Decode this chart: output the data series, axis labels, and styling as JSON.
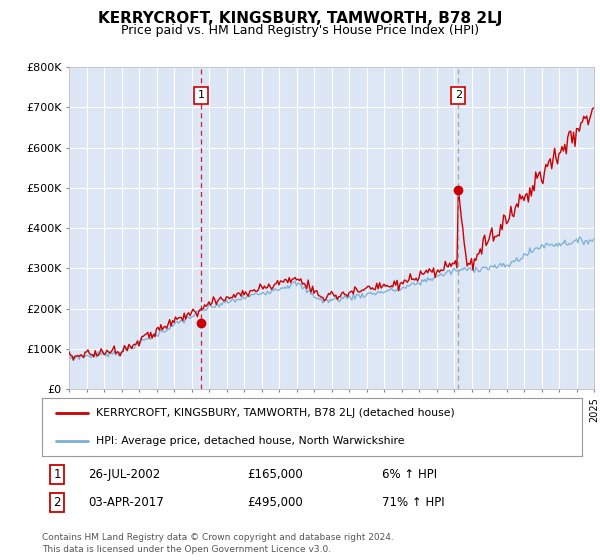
{
  "title": "KERRYCROFT, KINGSBURY, TAMWORTH, B78 2LJ",
  "subtitle": "Price paid vs. HM Land Registry's House Price Index (HPI)",
  "title_fontsize": 11,
  "subtitle_fontsize": 9,
  "bg_color": "#ffffff",
  "plot_bg_color": "#dce6f5",
  "legend_label_red": "KERRYCROFT, KINGSBURY, TAMWORTH, B78 2LJ (detached house)",
  "legend_label_blue": "HPI: Average price, detached house, North Warwickshire",
  "footer": "Contains HM Land Registry data © Crown copyright and database right 2024.\nThis data is licensed under the Open Government Licence v3.0.",
  "sale1_date": "26-JUL-2002",
  "sale1_price": "£165,000",
  "sale1_hpi": "6% ↑ HPI",
  "sale1_year": 2002.56,
  "sale2_date": "03-APR-2017",
  "sale2_price": "£495,000",
  "sale2_hpi": "71% ↑ HPI",
  "sale2_year": 2017.25,
  "xlim": [
    1995,
    2025
  ],
  "ylim": [
    0,
    800000
  ],
  "yticks": [
    0,
    100000,
    200000,
    300000,
    400000,
    500000,
    600000,
    700000,
    800000
  ],
  "ytick_labels": [
    "£0",
    "£100K",
    "£200K",
    "£300K",
    "£400K",
    "£500K",
    "£600K",
    "£700K",
    "£800K"
  ],
  "xticks": [
    1995,
    1996,
    1997,
    1998,
    1999,
    2000,
    2001,
    2002,
    2003,
    2004,
    2005,
    2006,
    2007,
    2008,
    2009,
    2010,
    2011,
    2012,
    2013,
    2014,
    2015,
    2016,
    2017,
    2018,
    2019,
    2020,
    2021,
    2022,
    2023,
    2024,
    2025
  ],
  "red_color": "#cc0000",
  "blue_color": "#7ab0d4",
  "vline1_color": "#cc0000",
  "vline2_color": "#999999",
  "marker_color": "#cc0000",
  "sale1_marker_y": 165000,
  "sale2_marker_y": 495000,
  "grid_color": "#ffffff"
}
